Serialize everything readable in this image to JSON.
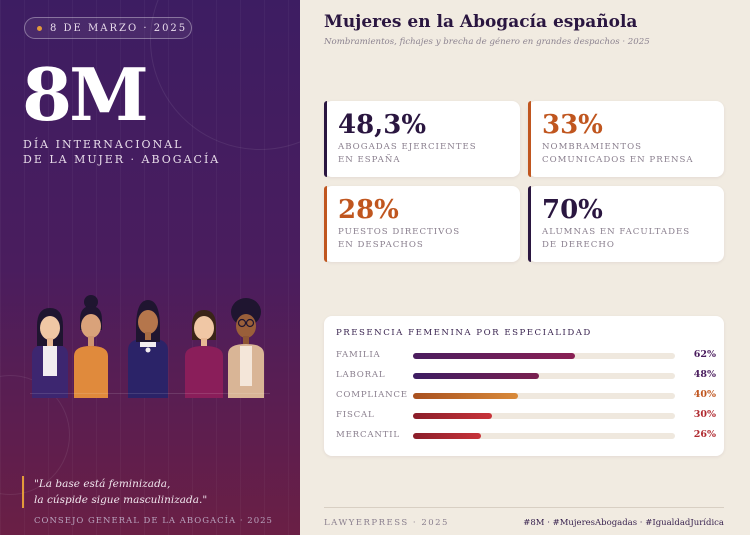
{
  "hero": {
    "date": "8 DE MARZO · 2025",
    "headline": "8M",
    "subtitle_line1": "DÍA INTERNACIONAL",
    "subtitle_line2": "DE LA MUJER · ABOGACÍA",
    "quote_line1": "\"La base está feminizada,",
    "quote_line2": "la cúspide sigue masculinizada.\"",
    "credit": "CONSEJO GENERAL DE LA ABOGACÍA · 2025"
  },
  "header": {
    "title": "Mujeres en la Abogacía española",
    "subtitle": "Nombramientos, fichajes y brecha de género en grandes despachos · 2025"
  },
  "stats": [
    {
      "value": "48,3%",
      "line1": "ABOGADAS EJERCIENTES",
      "line2": "EN ESPAÑA",
      "color": "#2a1640"
    },
    {
      "value": "33%",
      "line1": "NOMBRAMIENTOS",
      "line2": "COMUNICADOS EN PRENSA",
      "color": "#c0561f"
    },
    {
      "value": "28%",
      "line1": "PUESTOS DIRECTIVOS",
      "line2": "EN DESPACHOS",
      "color": "#c0561f"
    },
    {
      "value": "70%",
      "line1": "ALUMNAS EN FACULTADES",
      "line2": "DE DERECHO",
      "color": "#2a1640"
    }
  ],
  "specialty": {
    "title": "PRESENCIA FEMENINA POR ESPECIALIDAD",
    "rows": [
      {
        "name": "FAMILIA",
        "value": 62,
        "label": "62%",
        "color_a": "#4a1d5e",
        "color_b": "#8a2054",
        "text_color": "#4a1d5e"
      },
      {
        "name": "LABORAL",
        "value": 48,
        "label": "48%",
        "color_a": "#3d1d62",
        "color_b": "#7a2050",
        "text_color": "#4a1d5e"
      },
      {
        "name": "COMPLIANCE",
        "value": 40,
        "label": "40%",
        "color_a": "#a8501f",
        "color_b": "#d98a3a",
        "text_color": "#c0561f"
      },
      {
        "name": "FISCAL",
        "value": 30,
        "label": "30%",
        "color_a": "#8a1e2a",
        "color_b": "#c8333a",
        "text_color": "#b02a30"
      },
      {
        "name": "MERCANTIL",
        "value": 26,
        "label": "26%",
        "color_a": "#8a1e2a",
        "color_b": "#c8333a",
        "text_color": "#b02a30"
      }
    ]
  },
  "footer": {
    "source": "LAWYERPRESS · 2025",
    "tags": "#8M · #MujeresAbogadas · #IgualdadJurídica"
  },
  "icons": [
    "women-group-illustration"
  ]
}
